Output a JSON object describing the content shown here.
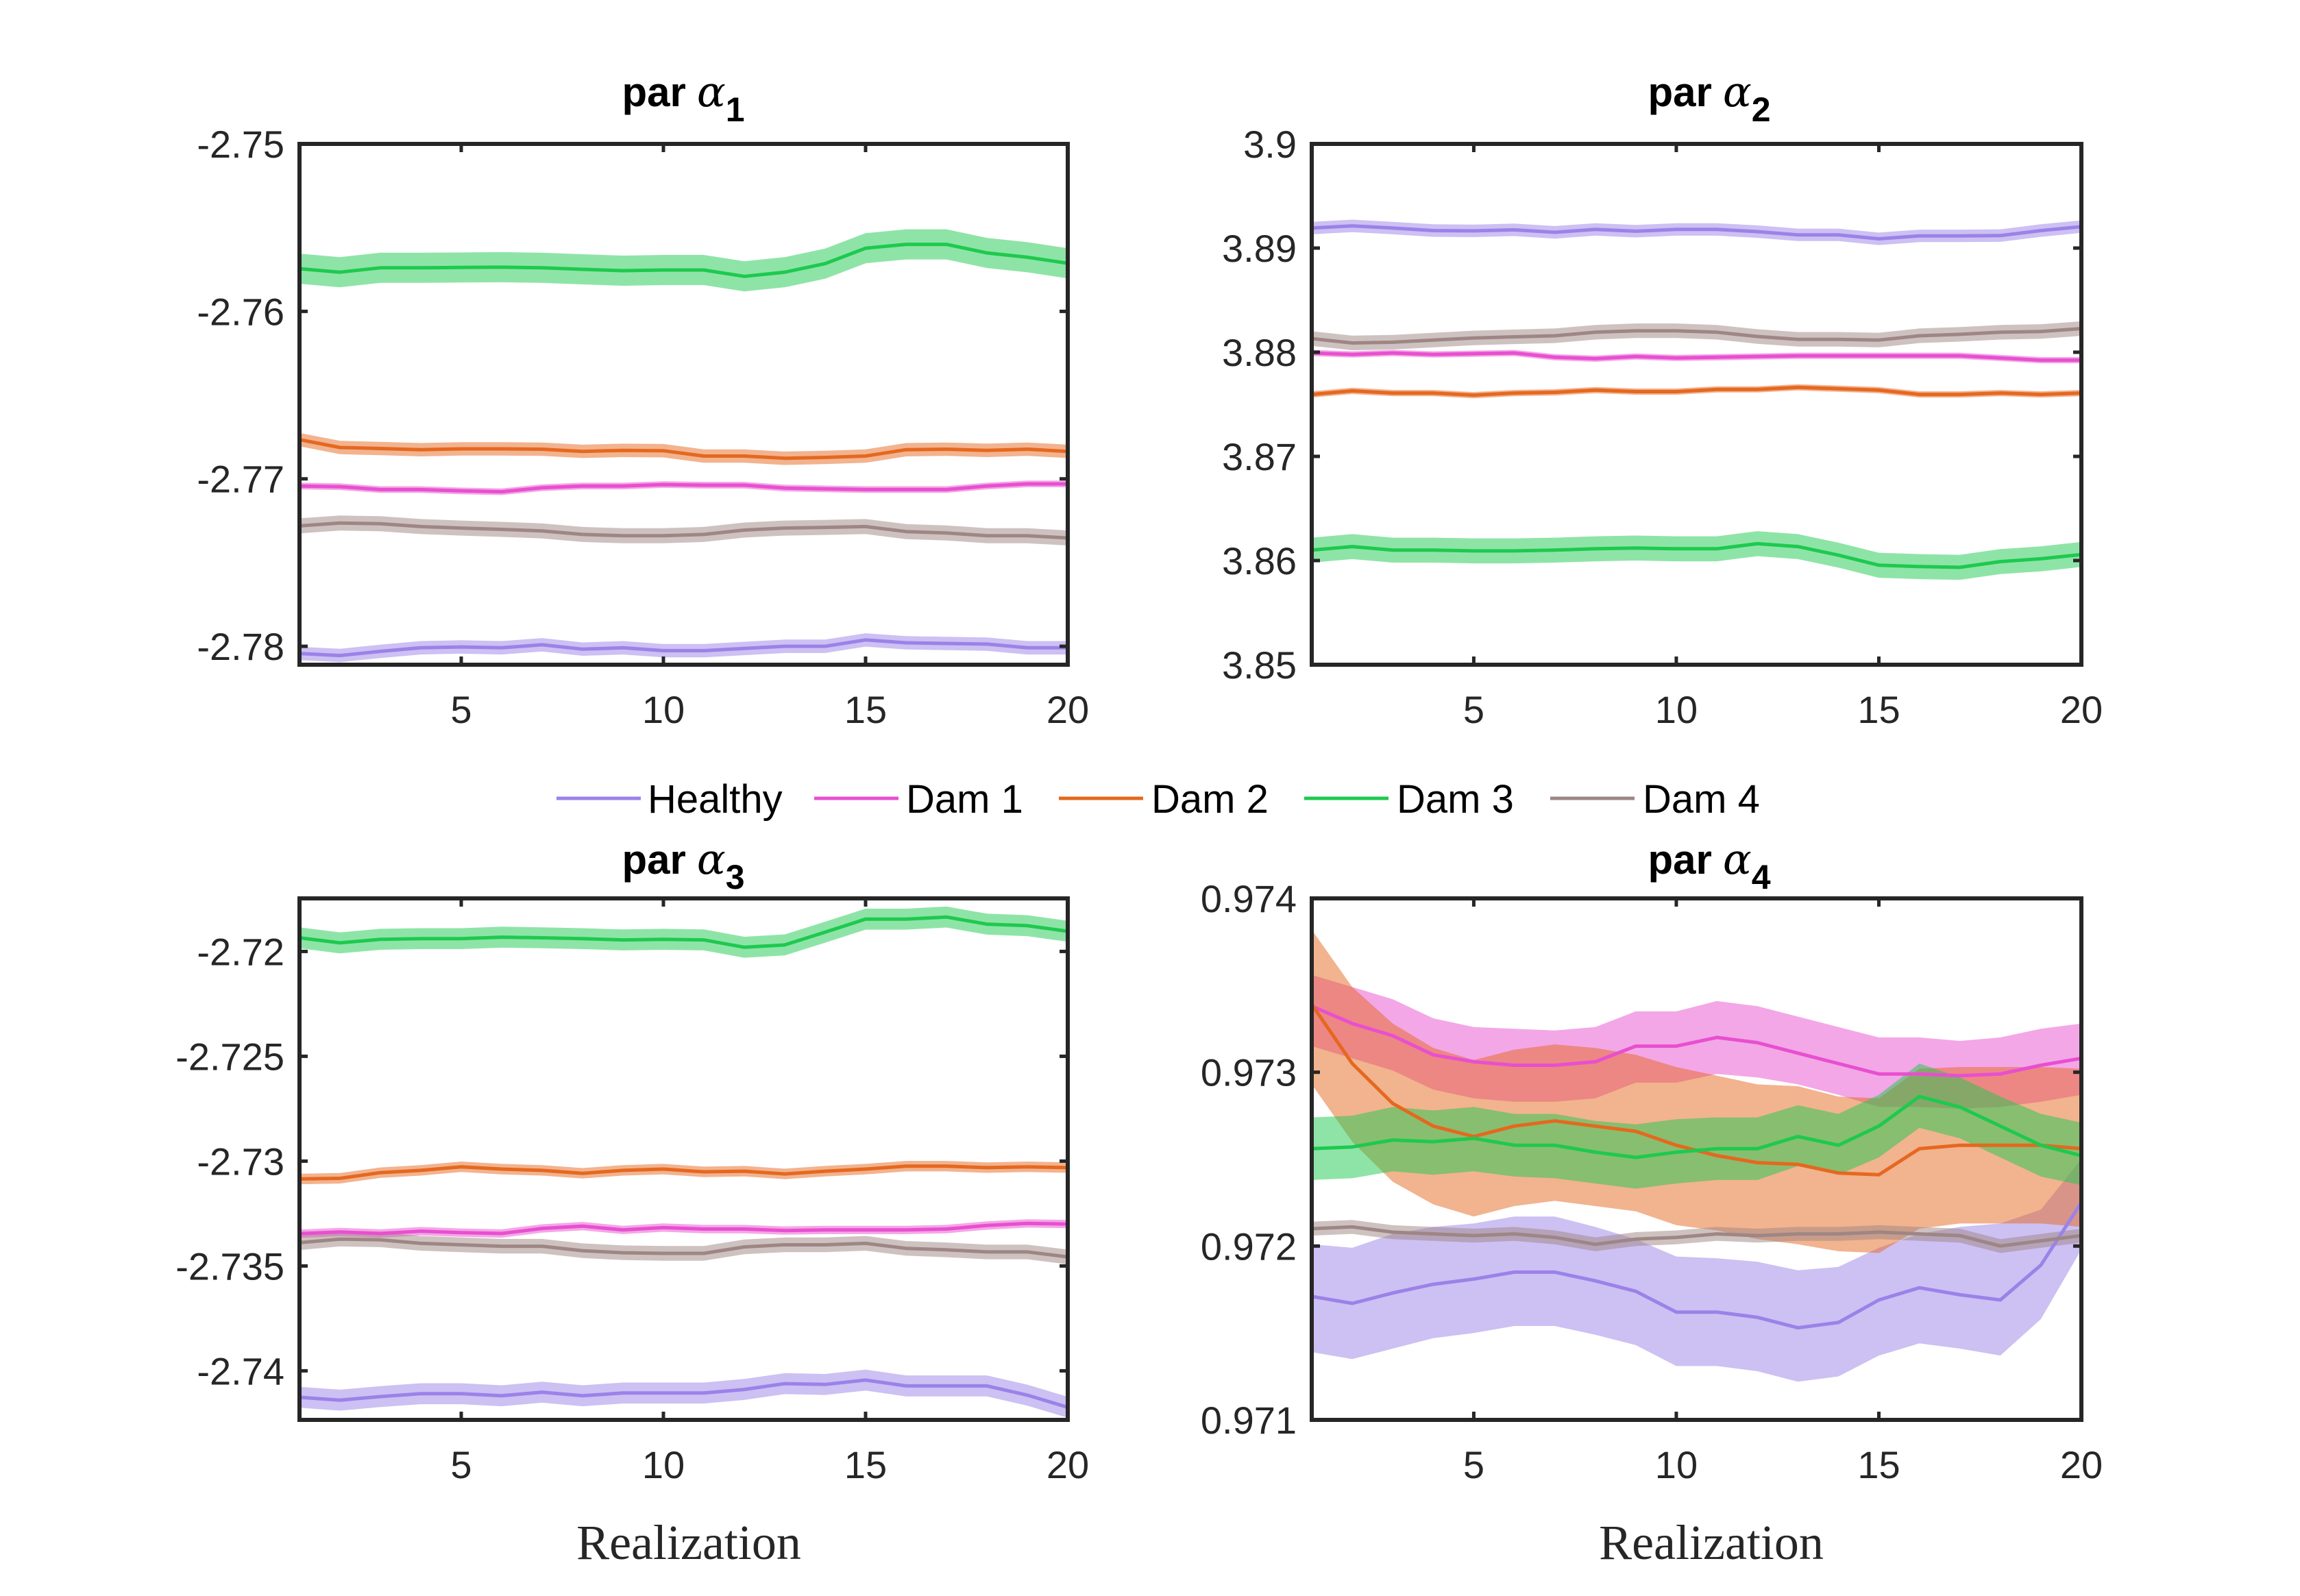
{
  "figure": {
    "legend": {
      "placement": "top-center between rows",
      "entries": [
        {
          "label": "Healthy",
          "color": "#9b82e8"
        },
        {
          "label": "Dam 1",
          "color": "#e84fd0"
        },
        {
          "label": "Dam 2",
          "color": "#e5681f"
        },
        {
          "label": "Dam 3",
          "color": "#1ec94f"
        },
        {
          "label": "Dam 4",
          "color": "#9e8684"
        }
      ]
    }
  },
  "chart_data": [
    {
      "type": "line",
      "title": "par α1",
      "title_prefix": "par",
      "title_symbol": "α",
      "title_subscript": "1",
      "xlabel": "",
      "ylabel": "",
      "xlim": [
        1,
        20
      ],
      "ylim": [
        -2.7811,
        -2.75
      ],
      "xticks": [
        5,
        10,
        15,
        20
      ],
      "xtick_labels": [
        "5",
        "10",
        "15",
        "20"
      ],
      "yticks": [
        -2.78,
        -2.77,
        -2.76,
        -2.75
      ],
      "ytick_labels": [
        "-2.78",
        "-2.77",
        "-2.76",
        "-2.75"
      ],
      "grid": false,
      "x": [
        1,
        2,
        3,
        4,
        5,
        6,
        7,
        8,
        9,
        10,
        11,
        12,
        13,
        14,
        15,
        16,
        17,
        18,
        19,
        20
      ],
      "series": [
        {
          "name": "Healthy",
          "band_halfwidth": 0.0004,
          "values": [
            -2.78043,
            -2.78055,
            -2.7803,
            -2.78009,
            -2.78004,
            -2.78009,
            -2.77991,
            -2.78017,
            -2.78009,
            -2.78026,
            -2.78026,
            -2.78013,
            -2.78,
            -2.78,
            -2.77962,
            -2.77979,
            -2.77983,
            -2.77987,
            -2.78009,
            -2.78009
          ]
        },
        {
          "name": "Dam 1",
          "band_halfwidth": 0.0002,
          "values": [
            -2.77043,
            -2.77047,
            -2.77064,
            -2.77064,
            -2.77072,
            -2.77077,
            -2.77053,
            -2.77043,
            -2.77043,
            -2.77034,
            -2.77038,
            -2.77038,
            -2.77055,
            -2.7706,
            -2.77064,
            -2.77064,
            -2.77064,
            -2.77043,
            -2.7703,
            -2.7703
          ]
        },
        {
          "name": "Dam 2",
          "band_halfwidth": 0.0004,
          "values": [
            -2.76766,
            -2.76813,
            -2.76819,
            -2.76826,
            -2.76821,
            -2.76821,
            -2.76823,
            -2.76836,
            -2.7683,
            -2.76832,
            -2.76864,
            -2.76864,
            -2.76877,
            -2.76872,
            -2.76864,
            -2.76826,
            -2.76823,
            -2.7683,
            -2.76823,
            -2.76836
          ]
        },
        {
          "name": "Dam 3",
          "band_halfwidth": 0.0009,
          "values": [
            -2.75745,
            -2.75766,
            -2.7574,
            -2.7574,
            -2.75738,
            -2.75736,
            -2.7574,
            -2.75749,
            -2.75757,
            -2.75753,
            -2.75753,
            -2.75791,
            -2.75766,
            -2.75715,
            -2.75623,
            -2.756,
            -2.756,
            -2.75651,
            -2.75677,
            -2.75713
          ]
        },
        {
          "name": "Dam 4",
          "band_halfwidth": 0.00045,
          "values": [
            -2.77281,
            -2.77264,
            -2.77268,
            -2.77285,
            -2.77294,
            -2.77302,
            -2.77311,
            -2.77332,
            -2.7734,
            -2.7734,
            -2.77332,
            -2.77306,
            -2.77294,
            -2.7729,
            -2.77285,
            -2.77315,
            -2.77323,
            -2.7734,
            -2.7734,
            -2.77353
          ]
        }
      ]
    },
    {
      "type": "line",
      "title": "par α2",
      "title_prefix": "par",
      "title_symbol": "α",
      "title_subscript": "2",
      "xlabel": "",
      "ylabel": "",
      "xlim": [
        1,
        20
      ],
      "ylim": [
        3.85,
        3.9
      ],
      "xticks": [
        5,
        10,
        15,
        20
      ],
      "xtick_labels": [
        "5",
        "10",
        "15",
        "20"
      ],
      "yticks": [
        3.85,
        3.86,
        3.87,
        3.88,
        3.89,
        3.9
      ],
      "ytick_labels": [
        "3.85",
        "3.86",
        "3.87",
        "3.88",
        "3.89",
        "3.9"
      ],
      "grid": false,
      "x": [
        1,
        2,
        3,
        4,
        5,
        6,
        7,
        8,
        9,
        10,
        11,
        12,
        13,
        14,
        15,
        16,
        17,
        18,
        19,
        20
      ],
      "series": [
        {
          "name": "Healthy",
          "band_halfwidth": 0.0006,
          "values": [
            3.89192,
            3.89213,
            3.89192,
            3.89168,
            3.89165,
            3.89175,
            3.89151,
            3.89179,
            3.89162,
            3.89179,
            3.89179,
            3.89158,
            3.89127,
            3.89127,
            3.89089,
            3.89117,
            3.89117,
            3.8912,
            3.89168,
            3.89206
          ]
        },
        {
          "name": "Dam 1",
          "band_halfwidth": 0.0003,
          "values": [
            3.87993,
            3.87979,
            3.87993,
            3.87979,
            3.87986,
            3.87993,
            3.87952,
            3.87938,
            3.87959,
            3.87945,
            3.87952,
            3.87959,
            3.87966,
            3.87966,
            3.87966,
            3.87966,
            3.87966,
            3.87945,
            3.87924,
            3.87924
          ]
        },
        {
          "name": "Dam 2",
          "band_halfwidth": 0.0003,
          "values": [
            3.87595,
            3.87629,
            3.87608,
            3.87608,
            3.87588,
            3.87608,
            3.87615,
            3.87636,
            3.87622,
            3.87622,
            3.87643,
            3.87643,
            3.87663,
            3.8765,
            3.87636,
            3.87595,
            3.87595,
            3.87608,
            3.87595,
            3.87608
          ]
        },
        {
          "name": "Dam 3",
          "band_halfwidth": 0.0012,
          "values": [
            3.861,
            3.86134,
            3.861,
            3.861,
            3.86093,
            3.86093,
            3.861,
            3.86113,
            3.8612,
            3.86113,
            3.86113,
            3.86162,
            3.86134,
            3.86052,
            3.85955,
            3.85942,
            3.85935,
            3.8599,
            3.86017,
            3.86058
          ]
        },
        {
          "name": "Dam 4",
          "band_halfwidth": 0.0007,
          "values": [
            3.88131,
            3.88089,
            3.88096,
            3.88117,
            3.88137,
            3.88148,
            3.88158,
            3.88192,
            3.88206,
            3.88206,
            3.88192,
            3.88151,
            3.88124,
            3.88124,
            3.88117,
            3.88158,
            3.88172,
            3.88192,
            3.88199,
            3.88227
          ]
        }
      ]
    },
    {
      "type": "line",
      "title": "par α3",
      "title_prefix": "par",
      "title_symbol": "α",
      "title_subscript": "3",
      "xlabel": "Realization",
      "ylabel": "",
      "xlim": [
        1,
        20
      ],
      "ylim": [
        -2.74234,
        -2.71747
      ],
      "xticks": [
        5,
        10,
        15,
        20
      ],
      "xtick_labels": [
        "5",
        "10",
        "15",
        "20"
      ],
      "yticks": [
        -2.74,
        -2.735,
        -2.73,
        -2.725,
        -2.72
      ],
      "ytick_labels": [
        "-2.74",
        "-2.735",
        "-2.73",
        "-2.725",
        "-2.72"
      ],
      "grid": false,
      "x": [
        1,
        2,
        3,
        4,
        5,
        6,
        7,
        8,
        9,
        10,
        11,
        12,
        13,
        14,
        15,
        16,
        17,
        18,
        19,
        20
      ],
      "series": [
        {
          "name": "Healthy",
          "band_halfwidth": 0.0005,
          "values": [
            -2.74126,
            -2.7414,
            -2.74123,
            -2.74109,
            -2.74109,
            -2.74119,
            -2.74102,
            -2.74119,
            -2.74106,
            -2.74106,
            -2.74106,
            -2.74089,
            -2.74061,
            -2.74065,
            -2.74044,
            -2.74072,
            -2.74072,
            -2.74072,
            -2.74116,
            -2.74174
          ]
        },
        {
          "name": "Dam 1",
          "band_halfwidth": 0.0002,
          "values": [
            -2.73346,
            -2.73338,
            -2.73345,
            -2.73334,
            -2.73341,
            -2.73345,
            -2.73321,
            -2.7331,
            -2.73328,
            -2.73317,
            -2.73324,
            -2.73324,
            -2.73331,
            -2.73328,
            -2.73328,
            -2.73328,
            -2.73324,
            -2.73307,
            -2.73297,
            -2.733
          ]
        },
        {
          "name": "Dam 2",
          "band_halfwidth": 0.00025,
          "values": [
            -2.73085,
            -2.73082,
            -2.73055,
            -2.73044,
            -2.73027,
            -2.73038,
            -2.73044,
            -2.73058,
            -2.73044,
            -2.73038,
            -2.73051,
            -2.73048,
            -2.73061,
            -2.73048,
            -2.73038,
            -2.73024,
            -2.73024,
            -2.73031,
            -2.73027,
            -2.73031
          ]
        },
        {
          "name": "Dam 3",
          "band_halfwidth": 0.0005,
          "values": [
            -2.71935,
            -2.71959,
            -2.71942,
            -2.71939,
            -2.71939,
            -2.71932,
            -2.71935,
            -2.71939,
            -2.71945,
            -2.71942,
            -2.71945,
            -2.7198,
            -2.71969,
            -2.71908,
            -2.71846,
            -2.71846,
            -2.71836,
            -2.7187,
            -2.71877,
            -2.71904
          ]
        },
        {
          "name": "Dam 4",
          "band_halfwidth": 0.00035,
          "values": [
            -2.73389,
            -2.73372,
            -2.73375,
            -2.73392,
            -2.73399,
            -2.73406,
            -2.73406,
            -2.73427,
            -2.73437,
            -2.7344,
            -2.7344,
            -2.73409,
            -2.73399,
            -2.73399,
            -2.73392,
            -2.73416,
            -2.73423,
            -2.73433,
            -2.73433,
            -2.73457
          ]
        }
      ]
    },
    {
      "type": "line",
      "title": "par α4",
      "title_prefix": "par",
      "title_symbol": "α",
      "title_subscript": "4",
      "xlabel": "Realization",
      "ylabel": "",
      "xlim": [
        1,
        20
      ],
      "ylim": [
        0.971,
        0.974
      ],
      "xticks": [
        5,
        10,
        15,
        20
      ],
      "xtick_labels": [
        "5",
        "10",
        "15",
        "20"
      ],
      "yticks": [
        0.971,
        0.972,
        0.973,
        0.974
      ],
      "ytick_labels": [
        "0.971",
        "0.972",
        "0.973",
        "0.974"
      ],
      "grid": false,
      "x": [
        1,
        2,
        3,
        4,
        5,
        6,
        7,
        8,
        9,
        10,
        11,
        12,
        13,
        14,
        15,
        16,
        17,
        18,
        19,
        20
      ],
      "series": [
        {
          "name": "Healthy",
          "values": [
            0.97171,
            0.97167,
            0.97173,
            0.97178,
            0.97181,
            0.97185,
            0.97185,
            0.9718,
            0.97174,
            0.97162,
            0.97162,
            0.97159,
            0.97153,
            0.97156,
            0.97169,
            0.97176,
            0.97172,
            0.97169,
            0.97189,
            0.97225
          ],
          "upper": [
            0.97201,
            0.97199,
            0.97207,
            0.97211,
            0.97213,
            0.97217,
            0.97217,
            0.97211,
            0.97204,
            0.97194,
            0.97193,
            0.97191,
            0.97186,
            0.97188,
            0.97199,
            0.97207,
            0.97211,
            0.97213,
            0.97221,
            0.9725
          ],
          "lower": [
            0.97139,
            0.97135,
            0.97141,
            0.97147,
            0.9715,
            0.97154,
            0.97154,
            0.97149,
            0.97143,
            0.97131,
            0.97131,
            0.97128,
            0.97122,
            0.97125,
            0.97137,
            0.97144,
            0.97141,
            0.97137,
            0.97158,
            0.97198
          ]
        },
        {
          "name": "Dam 1",
          "values": [
            0.97338,
            0.97328,
            0.97321,
            0.9731,
            0.97306,
            0.97304,
            0.97304,
            0.97306,
            0.97315,
            0.97315,
            0.9732,
            0.97317,
            0.97311,
            0.97305,
            0.97299,
            0.97299,
            0.97298,
            0.97299,
            0.97304,
            0.97308
          ],
          "upper": [
            0.97356,
            0.97349,
            0.97342,
            0.97331,
            0.97326,
            0.97325,
            0.97324,
            0.97326,
            0.97335,
            0.97335,
            0.97341,
            0.97338,
            0.97332,
            0.97326,
            0.9732,
            0.9732,
            0.97318,
            0.9732,
            0.97325,
            0.97328
          ],
          "lower": [
            0.97315,
            0.97308,
            0.97301,
            0.9729,
            0.97285,
            0.97283,
            0.97283,
            0.97285,
            0.97294,
            0.97294,
            0.97299,
            0.97297,
            0.97293,
            0.97287,
            0.9728,
            0.9728,
            0.97279,
            0.9728,
            0.97283,
            0.97287
          ]
        },
        {
          "name": "Dam 2",
          "values": [
            0.97339,
            0.97305,
            0.97282,
            0.97269,
            0.97263,
            0.97269,
            0.97272,
            0.97269,
            0.97266,
            0.97258,
            0.97252,
            0.97248,
            0.97247,
            0.97242,
            0.97241,
            0.97256,
            0.97258,
            0.97258,
            0.97258,
            0.97256
          ],
          "upper": [
            0.97382,
            0.97349,
            0.97328,
            0.97314,
            0.97307,
            0.97313,
            0.97316,
            0.97314,
            0.9731,
            0.97303,
            0.97298,
            0.97293,
            0.97292,
            0.97286,
            0.97285,
            0.97302,
            0.97303,
            0.97303,
            0.97303,
            0.97302
          ],
          "lower": [
            0.97293,
            0.9726,
            0.97237,
            0.97224,
            0.97217,
            0.97223,
            0.97226,
            0.97223,
            0.9722,
            0.97212,
            0.97209,
            0.97204,
            0.97201,
            0.97197,
            0.97196,
            0.9721,
            0.97213,
            0.97213,
            0.97213,
            0.97211
          ]
        },
        {
          "name": "Dam 3",
          "values": [
            0.97256,
            0.97257,
            0.97261,
            0.9726,
            0.97262,
            0.97258,
            0.97258,
            0.97254,
            0.97251,
            0.97254,
            0.97256,
            0.97256,
            0.97263,
            0.97258,
            0.97269,
            0.97286,
            0.9728,
            0.97269,
            0.97258,
            0.97252
          ],
          "upper": [
            0.97274,
            0.97275,
            0.9728,
            0.97278,
            0.9728,
            0.97276,
            0.97276,
            0.97272,
            0.9727,
            0.97273,
            0.97274,
            0.97274,
            0.97281,
            0.97276,
            0.97287,
            0.97305,
            0.97297,
            0.97286,
            0.97276,
            0.97271
          ],
          "lower": [
            0.97238,
            0.97239,
            0.97243,
            0.97241,
            0.97243,
            0.9724,
            0.97239,
            0.97236,
            0.97233,
            0.97236,
            0.97238,
            0.97238,
            0.97246,
            0.97241,
            0.97251,
            0.97268,
            0.97262,
            0.97251,
            0.9724,
            0.97235
          ]
        },
        {
          "name": "Dam 4",
          "band_halfwidth": 4e-05,
          "values": [
            0.9721,
            0.97211,
            0.97208,
            0.97207,
            0.97206,
            0.97207,
            0.97205,
            0.97201,
            0.97204,
            0.97205,
            0.97207,
            0.97206,
            0.97207,
            0.97207,
            0.97208,
            0.97207,
            0.97206,
            0.972,
            0.97203,
            0.97206
          ]
        }
      ]
    }
  ]
}
